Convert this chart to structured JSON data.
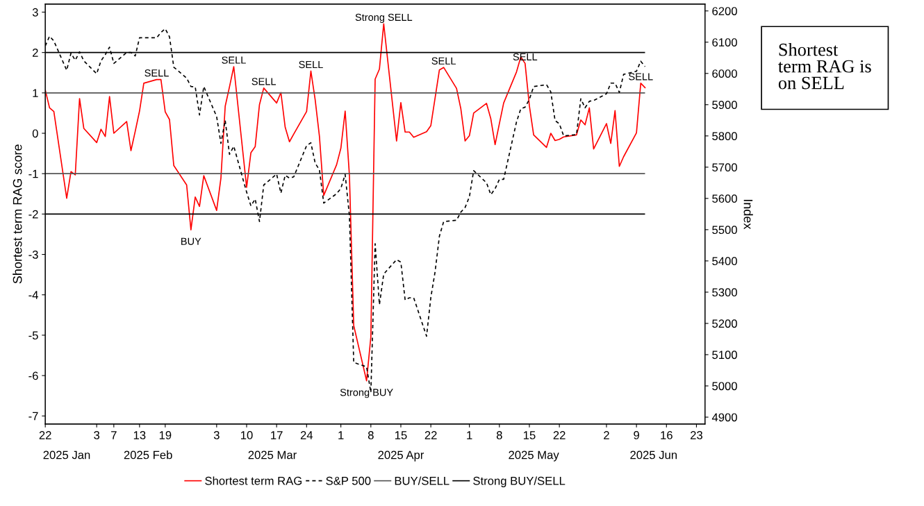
{
  "chart_data": {
    "type": "line",
    "ylabel": "Shortest term RAG score",
    "y2label": "Index",
    "x": [
      "2025-01-22",
      "2025-01-23",
      "2025-01-24",
      "2025-01-27",
      "2025-01-28",
      "2025-01-29",
      "2025-01-30",
      "2025-01-31",
      "2025-02-03",
      "2025-02-04",
      "2025-02-05",
      "2025-02-06",
      "2025-02-07",
      "2025-02-10",
      "2025-02-11",
      "2025-02-12",
      "2025-02-13",
      "2025-02-14",
      "2025-02-17",
      "2025-02-18",
      "2025-02-19",
      "2025-02-20",
      "2025-02-21",
      "2025-02-24",
      "2025-02-25",
      "2025-02-26",
      "2025-02-27",
      "2025-02-28",
      "2025-03-03",
      "2025-03-04",
      "2025-03-05",
      "2025-03-06",
      "2025-03-07",
      "2025-03-10",
      "2025-03-11",
      "2025-03-12",
      "2025-03-13",
      "2025-03-14",
      "2025-03-17",
      "2025-03-18",
      "2025-03-19",
      "2025-03-20",
      "2025-03-21",
      "2025-03-24",
      "2025-03-25",
      "2025-03-26",
      "2025-03-27",
      "2025-03-28",
      "2025-03-31",
      "2025-04-01",
      "2025-04-02",
      "2025-04-03",
      "2025-04-04",
      "2025-04-07",
      "2025-04-08",
      "2025-04-09",
      "2025-04-10",
      "2025-04-11",
      "2025-04-14",
      "2025-04-15",
      "2025-04-16",
      "2025-04-17",
      "2025-04-18",
      "2025-04-21",
      "2025-04-22",
      "2025-04-23",
      "2025-04-24",
      "2025-04-25",
      "2025-04-28",
      "2025-04-29",
      "2025-04-30",
      "2025-05-01",
      "2025-05-02",
      "2025-05-05",
      "2025-05-06",
      "2025-05-07",
      "2025-05-08",
      "2025-05-09",
      "2025-05-12",
      "2025-05-13",
      "2025-05-14",
      "2025-05-15",
      "2025-05-16",
      "2025-05-19",
      "2025-05-20",
      "2025-05-21",
      "2025-05-22",
      "2025-05-23",
      "2025-05-26",
      "2025-05-27",
      "2025-05-28",
      "2025-05-29",
      "2025-05-30",
      "2025-06-02",
      "2025-06-03",
      "2025-06-04",
      "2025-06-05",
      "2025-06-06",
      "2025-06-09",
      "2025-06-10",
      "2025-06-11"
    ],
    "series": [
      {
        "name": "Shortest term RAG",
        "color": "#ff0000",
        "line_style": "solid",
        "values": [
          1.07,
          0.63,
          0.54,
          -1.61,
          -0.95,
          -1.03,
          0.86,
          0.12,
          -0.23,
          0.1,
          -0.08,
          0.91,
          0.0,
          0.29,
          -0.43,
          0.05,
          0.55,
          1.24,
          1.33,
          1.33,
          0.53,
          0.34,
          -0.8,
          -1.28,
          -2.39,
          -1.58,
          -1.81,
          -1.05,
          -1.91,
          -1.11,
          0.67,
          1.15,
          1.65,
          -1.34,
          -0.48,
          -0.33,
          0.71,
          1.12,
          0.75,
          1.01,
          0.15,
          -0.21,
          -0.02,
          0.54,
          1.54,
          0.83,
          -0.08,
          -1.54,
          -0.78,
          -0.37,
          0.55,
          -1.05,
          -4.76,
          -6.13,
          -5.04,
          1.34,
          1.59,
          2.71,
          -0.19,
          0.76,
          0.03,
          0.03,
          -0.1,
          0.04,
          0.19,
          0.88,
          1.57,
          1.63,
          1.11,
          0.61,
          -0.19,
          -0.06,
          0.5,
          0.74,
          0.36,
          -0.28,
          0.24,
          0.75,
          1.52,
          1.89,
          1.73,
          0.68,
          -0.04,
          -0.35,
          0.0,
          -0.18,
          -0.15,
          -0.09,
          -0.04,
          0.33,
          0.21,
          0.63,
          -0.39,
          0.24,
          -0.25,
          0.56,
          -0.82,
          -0.58,
          0.01,
          1.24,
          1.13
        ]
      },
      {
        "name": "S&P 500",
        "color": "#000000",
        "line_style": "dashed",
        "axis": "y2",
        "values": [
          6088,
          6119,
          6104,
          6010,
          6065,
          6042,
          6069,
          6040,
          5999,
          6040,
          6060,
          6084,
          6032,
          6067,
          6067,
          6056,
          6114,
          6114,
          6114,
          6131,
          6143,
          6117,
          6020,
          5985,
          5958,
          5957,
          5867,
          5958,
          5862,
          5776,
          5850,
          5741,
          5767,
          5620,
          5576,
          5598,
          5526,
          5643,
          5678,
          5617,
          5674,
          5665,
          5669,
          5769,
          5778,
          5713,
          5691,
          5585,
          5615,
          5632,
          5677,
          5544,
          5075,
          5061,
          4979,
          5455,
          5260,
          5358,
          5404,
          5396,
          5275,
          5282,
          5282,
          5159,
          5283,
          5366,
          5479,
          5526,
          5530,
          5556,
          5571,
          5605,
          5689,
          5650,
          5612,
          5631,
          5661,
          5661,
          5845,
          5887,
          5892,
          5917,
          5958,
          5964,
          5941,
          5849,
          5839,
          5800,
          5804,
          5919,
          5890,
          5911,
          5913,
          5935,
          5969,
          5969,
          5939,
          5997,
          6007,
          6039,
          6022
        ]
      }
    ],
    "ref_lines": [
      {
        "axis": "y",
        "value": 1,
        "label": "BUY/SELL",
        "color": "#555555"
      },
      {
        "axis": "y",
        "value": -1,
        "label": null,
        "color": "#555555"
      },
      {
        "axis": "y",
        "value": 2,
        "label": "Strong BUY/SELL",
        "color": "#000000"
      },
      {
        "axis": "y",
        "value": -2,
        "label": null,
        "color": "#000000"
      }
    ],
    "annotations": [
      {
        "text": "SELL",
        "x": "2025-02-17",
        "y": 1.33
      },
      {
        "text": "SELL",
        "x": "2025-03-07",
        "y": 1.65
      },
      {
        "text": "SELL",
        "x": "2025-03-14",
        "y": 1.12
      },
      {
        "text": "SELL",
        "x": "2025-03-25",
        "y": 1.54
      },
      {
        "text": "Strong SELL",
        "x": "2025-04-11",
        "y": 2.71
      },
      {
        "text": "SELL",
        "x": "2025-04-25",
        "y": 1.63
      },
      {
        "text": "SELL",
        "x": "2025-05-14",
        "y": 1.73
      },
      {
        "text": "SELL",
        "x": "2025-06-10",
        "y": 1.24
      },
      {
        "text": "BUY",
        "x": "2025-02-25",
        "y": -2.39
      },
      {
        "text": "Strong BUY",
        "x": "2025-04-07",
        "y": -6.13
      },
      "Shortest\nterm RAG is\non SELL"
    ],
    "xlim": [
      "2025-01-22",
      "2025-06-25"
    ],
    "xticks": [
      {
        "value": "2025-01-22",
        "label": "22"
      },
      {
        "value": "2025-02-03",
        "label": "3"
      },
      {
        "value": "2025-02-07",
        "label": "7"
      },
      {
        "value": "2025-02-13",
        "label": "13"
      },
      {
        "value": "2025-02-19",
        "label": "19"
      },
      {
        "value": "2025-03-03",
        "label": "3"
      },
      {
        "value": "2025-03-10",
        "label": "10"
      },
      {
        "value": "2025-03-17",
        "label": "17"
      },
      {
        "value": "2025-03-24",
        "label": "24"
      },
      {
        "value": "2025-04-01",
        "label": "1"
      },
      {
        "value": "2025-04-08",
        "label": "8"
      },
      {
        "value": "2025-04-15",
        "label": "15"
      },
      {
        "value": "2025-04-22",
        "label": "22"
      },
      {
        "value": "2025-05-01",
        "label": "1"
      },
      {
        "value": "2025-05-08",
        "label": "8"
      },
      {
        "value": "2025-05-15",
        "label": "15"
      },
      {
        "value": "2025-05-22",
        "label": "22"
      },
      {
        "value": "2025-06-02",
        "label": "2"
      },
      {
        "value": "2025-06-09",
        "label": "9"
      },
      {
        "value": "2025-06-16",
        "label": "16"
      },
      {
        "value": "2025-06-23",
        "label": "23"
      }
    ],
    "x2lim": [
      "2025-01-22",
      "2025-06-25"
    ],
    "x2ticks": [
      {
        "value": "2025-01-27",
        "label": "2025 Jan"
      },
      {
        "value": "2025-02-15",
        "label": "2025 Feb"
      },
      {
        "value": "2025-03-16",
        "label": "2025 Mar"
      },
      {
        "value": "2025-04-15",
        "label": "2025 Apr"
      },
      {
        "value": "2025-05-16",
        "label": "2025 May"
      },
      {
        "value": "2025-06-13",
        "label": "2025 Jun"
      }
    ],
    "ylim": [
      -7.2,
      3.2
    ],
    "yticks": [
      -7,
      -6,
      -5,
      -4,
      -3,
      -2,
      -1,
      0,
      1,
      2,
      3
    ],
    "y2lim": [
      4878,
      6222
    ],
    "y2ticks": [
      4900,
      5000,
      5100,
      5200,
      5300,
      5400,
      5500,
      5600,
      5700,
      5800,
      5900,
      6000,
      6100,
      6200
    ],
    "grid": false,
    "legend": "bottom",
    "marker": "none"
  }
}
